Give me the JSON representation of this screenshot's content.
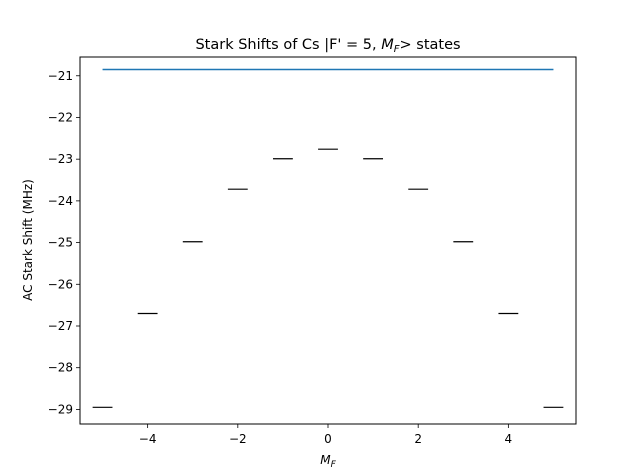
{
  "chart_data": {
    "type": "line",
    "title": {
      "prefix": "Stark Shifts of Cs |F' = 5, ",
      "math_main": "M",
      "math_sub": "F",
      "suffix": "> states"
    },
    "xlabel": {
      "math_main": "M",
      "math_sub": "F"
    },
    "ylabel": "AC Stark Shift (MHz)",
    "xlim": [
      -5.5,
      5.5
    ],
    "ylim": [
      -29.35,
      -20.55
    ],
    "xticks": [
      {
        "value": -4,
        "label": "−4"
      },
      {
        "value": -2,
        "label": "−2"
      },
      {
        "value": 0,
        "label": "0"
      },
      {
        "value": 2,
        "label": "2"
      },
      {
        "value": 4,
        "label": "4"
      }
    ],
    "yticks": [
      {
        "value": -21,
        "label": "−21"
      },
      {
        "value": -22,
        "label": "−22"
      },
      {
        "value": -23,
        "label": "−23"
      },
      {
        "value": -24,
        "label": "−24"
      },
      {
        "value": -25,
        "label": "−25"
      },
      {
        "value": -26,
        "label": "−26"
      },
      {
        "value": -27,
        "label": "−27"
      },
      {
        "value": -28,
        "label": "−28"
      },
      {
        "value": -29,
        "label": "−29"
      }
    ],
    "grid": false,
    "legend": "none",
    "reference_line": {
      "x": [
        -5,
        5
      ],
      "y": -20.85,
      "color": "#1f77b4"
    },
    "levels": {
      "half_width": 0.22,
      "color": "#000000",
      "points": [
        {
          "mf": -5,
          "shift": -28.95
        },
        {
          "mf": -4,
          "shift": -26.7
        },
        {
          "mf": -3,
          "shift": -24.98
        },
        {
          "mf": -2,
          "shift": -23.72
        },
        {
          "mf": -1,
          "shift": -22.99
        },
        {
          "mf": 0,
          "shift": -22.76
        },
        {
          "mf": 1,
          "shift": -22.99
        },
        {
          "mf": 2,
          "shift": -23.72
        },
        {
          "mf": 3,
          "shift": -24.98
        },
        {
          "mf": 4,
          "shift": -26.7
        },
        {
          "mf": 5,
          "shift": -28.95
        }
      ]
    }
  }
}
